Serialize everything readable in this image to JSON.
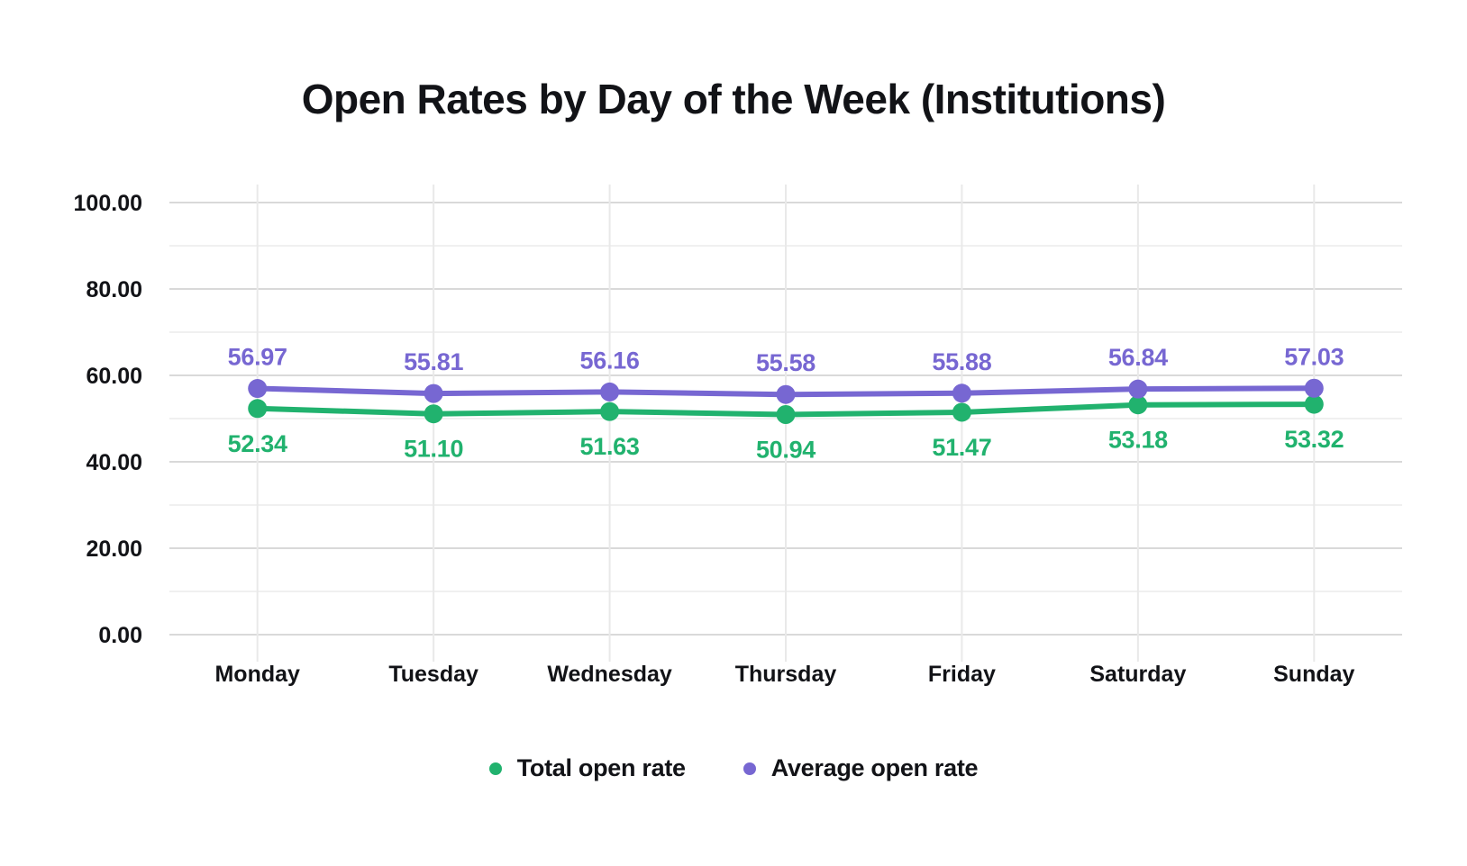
{
  "title": "Open Rates by Day of the Week (Institutions)",
  "legend": {
    "items": [
      {
        "label": "Total open rate",
        "color": "#21B26E"
      },
      {
        "label": "Average open rate",
        "color": "#7767D2"
      }
    ]
  },
  "colors": {
    "total_series": "#21B26E",
    "average_series": "#7767D2",
    "grid_major": "#d9d9d9",
    "grid_minor": "#f0f0f0",
    "grid_vertical": "#e9e9e9",
    "axis_text": "#121317",
    "background": "#ffffff"
  },
  "chart_data": {
    "type": "line",
    "title": "Open Rates by Day of the Week (Institutions)",
    "categories": [
      "Monday",
      "Tuesday",
      "Wednesday",
      "Thursday",
      "Friday",
      "Saturday",
      "Sunday"
    ],
    "series": [
      {
        "name": "Total open rate",
        "color": "#21B26E",
        "values": [
          52.34,
          51.1,
          51.63,
          50.94,
          51.47,
          53.18,
          53.32
        ],
        "label_position": "below"
      },
      {
        "name": "Average open rate",
        "color": "#7767D2",
        "values": [
          56.97,
          55.81,
          56.16,
          55.58,
          55.88,
          56.84,
          57.03
        ],
        "label_position": "above"
      }
    ],
    "xlabel": "",
    "ylabel": "",
    "ylim": [
      0,
      100
    ],
    "yticks": [
      0,
      20,
      40,
      60,
      80,
      100
    ],
    "ytick_decimals": 2,
    "minor_grid_step": 10,
    "grid": true,
    "legend_position": "bottom",
    "data_labels": true
  }
}
